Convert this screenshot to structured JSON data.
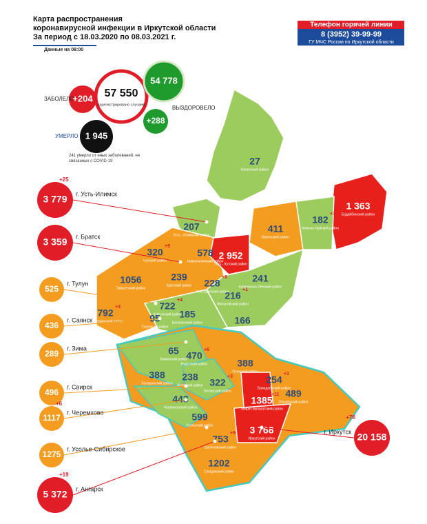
{
  "header": {
    "title_lines": [
      "Карта распространения",
      "коронавирусной инфекции в Иркутской области",
      "За период с 18.03.2020 по 08.03.2021 г."
    ],
    "data_time": "Данные на 08:00"
  },
  "hotline": {
    "title": "Телефон горячей линии",
    "phone": "8 (3952) 39-99-99",
    "org": "ГУ МЧС России по Иркутской области"
  },
  "summary": {
    "infected_label": "ЗАБОЛЕЛО",
    "infected_new": "+204",
    "total": "57 550",
    "total_note": "зарегистрировано случаев",
    "recovered": "54 778",
    "recovered_new": "+288",
    "recovered_label": "ВЫЗДОРОВЕЛО",
    "died_label": "УМЕРЛО",
    "died": "1 945",
    "died_note": "241 умерло от иных заболеваний, не связанных с COVID-19"
  },
  "cities": [
    {
      "name": "г. Усть-Илимск",
      "value": "3 779",
      "delta": "+25"
    },
    {
      "name": "г. Братск",
      "value": "3 359"
    },
    {
      "name": "г. Тулун",
      "value": "525"
    },
    {
      "name": "г. Саянск",
      "value": "436"
    },
    {
      "name": "г. Зима",
      "value": "289"
    },
    {
      "name": "г. Свирск",
      "value": "496"
    },
    {
      "name": "г. Черемхово",
      "value": "1117",
      "delta": "+6"
    },
    {
      "name": "г. Усолье-Сибирское",
      "value": "1275"
    },
    {
      "name": "г. Ангарск",
      "value": "5 372",
      "delta": "+19"
    },
    {
      "name": "г. Иркутск",
      "value": "20 158",
      "delta": "+76"
    }
  ],
  "districts": [
    {
      "value": "27",
      "name": "Катангский район"
    },
    {
      "value": "1 363",
      "name": "Бодайбинский район"
    },
    {
      "value": "182",
      "name": "Мамско-Чуйский район",
      "delta": "+7"
    },
    {
      "value": "411",
      "name": "Киренский район"
    },
    {
      "value": "207",
      "name": "Усть - Илимский район"
    },
    {
      "value": "2 952",
      "name": "Усть - Кутский район"
    },
    {
      "value": "578",
      "name": "Нижнеилимский район"
    },
    {
      "value": "320",
      "name": "Чунский район",
      "delta": "+9"
    },
    {
      "value": "239",
      "name": "Братский район"
    },
    {
      "value": "1056",
      "name": "Тайшетский район"
    },
    {
      "value": "228",
      "name": "Усть-Удинский район",
      "delta": "+8"
    },
    {
      "value": "241",
      "name": "Казачинско-Ленский район"
    },
    {
      "value": "216",
      "name": "Жигаловский район",
      "delta": "+1"
    },
    {
      "value": "722",
      "name": "Куйтунский район",
      "delta": "+4"
    },
    {
      "value": "792",
      "name": "Нижнеудинский район",
      "delta": "+3"
    },
    {
      "value": "95",
      "name": "Тулунский район"
    },
    {
      "value": "185",
      "name": "Балаганский район"
    },
    {
      "value": "166",
      "name": "Качугский район"
    },
    {
      "value": "65",
      "name": "Зиминский район"
    },
    {
      "value": "470",
      "name": "Нукутский район",
      "delta": "+6"
    },
    {
      "value": "388",
      "name": "Осинский район"
    },
    {
      "value": "388",
      "name": "Заларинский район"
    },
    {
      "value": "238",
      "name": "Аларский район"
    },
    {
      "value": "322",
      "name": "Боханский район",
      "delta": "+3"
    },
    {
      "value": "254",
      "name": "Баяндаевский район",
      "delta": "+1"
    },
    {
      "value": "443",
      "name": "Черемховский район"
    },
    {
      "value": "1385",
      "name": "Эхирит-Булагатский район",
      "delta": "+11"
    },
    {
      "value": "489",
      "name": "Ольхонский район"
    },
    {
      "value": "599",
      "name": "Усольский район"
    },
    {
      "value": "3 768",
      "name": "Иркутский район",
      "delta": "+16"
    },
    {
      "value": "753",
      "name": "Шелеховский район",
      "delta": "+9"
    },
    {
      "value": "1202",
      "name": "Слюдянский район"
    }
  ]
}
